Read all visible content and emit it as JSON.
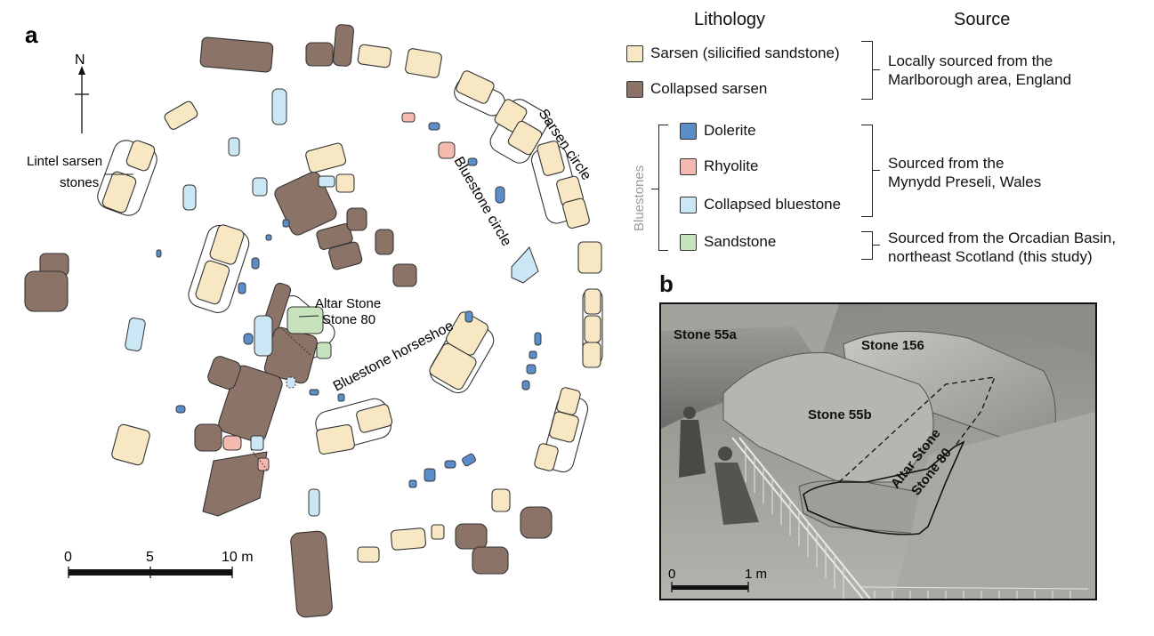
{
  "panel_a": {
    "letter": "a",
    "north_label": "N",
    "labels": {
      "lintel": [
        "Lintel sarsen",
        "stones"
      ],
      "sarsen_circle": "Sarsen circle",
      "bluestone_circle": "Bluestone circle",
      "altar": [
        "Altar Stone",
        "Stone 80"
      ],
      "horseshoe": "Bluestone horseshoe"
    },
    "scale": {
      "ticks": [
        "0",
        "5",
        "10 m"
      ]
    }
  },
  "legend": {
    "headers": {
      "lithology": "Lithology",
      "source": "Source"
    },
    "group_label": "Bluestones",
    "items": [
      {
        "label": "Sarsen (silicified sandstone)",
        "color": "#f7e8c3"
      },
      {
        "label": "Collapsed sarsen",
        "color": "#8b7367"
      },
      {
        "label": "Dolerite",
        "color": "#5b8ec9"
      },
      {
        "label": "Rhyolite",
        "color": "#f6b9b0"
      },
      {
        "label": "Collapsed bluestone",
        "color": "#cbe6f4"
      },
      {
        "label": "Sandstone",
        "color": "#c6e3bd"
      }
    ],
    "sources": [
      {
        "lines": [
          "Locally sourced from the",
          "Marlborough area, England"
        ]
      },
      {
        "lines": [
          "Sourced from the",
          "Mynydd Preseli, Wales"
        ]
      },
      {
        "lines": [
          "Sourced from the Orcadian Basin,",
          "northeast Scotland (this study)"
        ]
      }
    ]
  },
  "panel_b": {
    "letter": "b",
    "labels": {
      "s55a": "Stone 55a",
      "s156": "Stone 156",
      "s55b": "Stone 55b",
      "altar1": "Altar Stone",
      "altar2": "Stone 80"
    },
    "scale": {
      "ticks": [
        "0",
        "1 m"
      ]
    }
  }
}
